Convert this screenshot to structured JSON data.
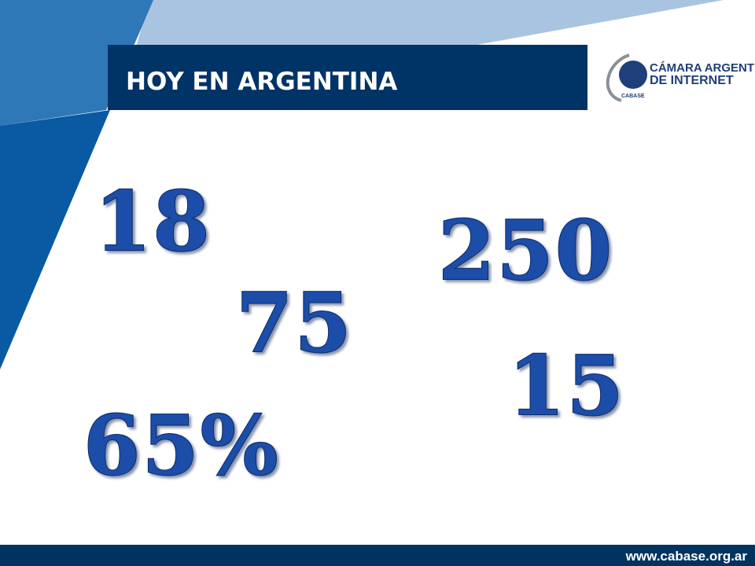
{
  "header": {
    "title": "HOY EN ARGENTINA"
  },
  "logo": {
    "line1": "CÁMARA ARGENTINA",
    "line2": "DE INTERNET",
    "small": "CABASE"
  },
  "figures": [
    "18",
    "250",
    "75",
    "15",
    "65%"
  ],
  "footer": {
    "url": "www.cabase.org.ar"
  }
}
